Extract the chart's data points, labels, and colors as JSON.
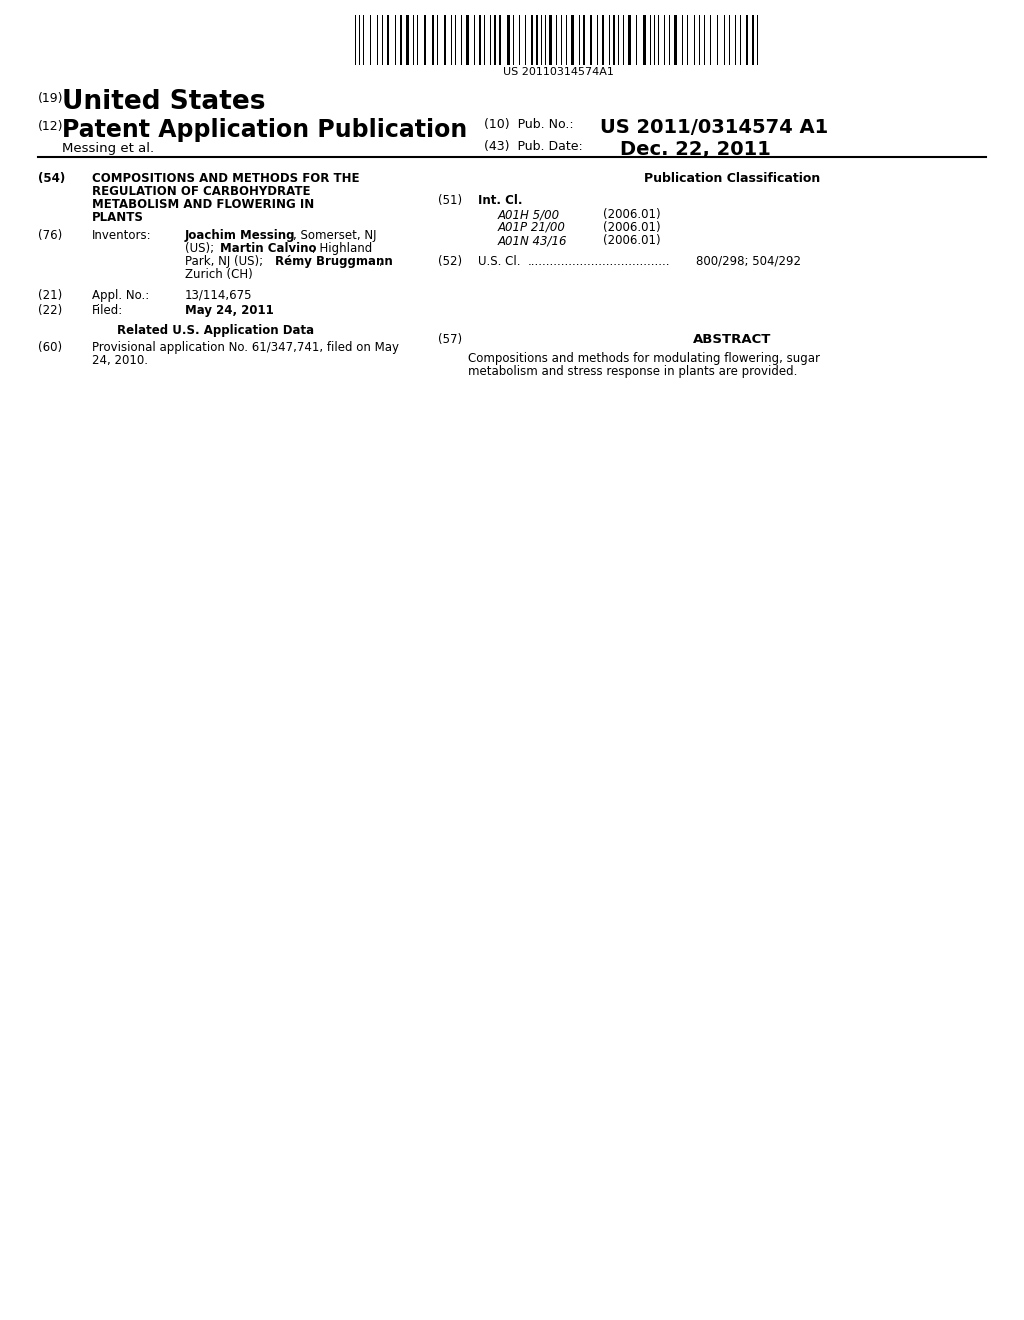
{
  "background_color": "#ffffff",
  "barcode_text": "US 20110314574A1",
  "country": "United States",
  "country_prefix": "(19)",
  "pub_type": "Patent Application Publication",
  "pub_type_prefix": "(12)",
  "inventors_line": "Messing et al.",
  "pub_no_prefix": "(10)  Pub. No.:",
  "pub_no": "US 2011/0314574 A1",
  "pub_date_prefix": "(43)  Pub. Date:",
  "pub_date": "Dec. 22, 2011",
  "field54_prefix": "(54)",
  "field54_lines": [
    "COMPOSITIONS AND METHODS FOR THE",
    "REGULATION OF CARBOHYDRATE",
    "METABOLISM AND FLOWERING IN",
    "PLANTS"
  ],
  "field76_prefix": "(76)",
  "field76_label": "Inventors:",
  "field21_prefix": "(21)",
  "field21_label": "Appl. No.:",
  "field21_value": "13/114,675",
  "field22_prefix": "(22)",
  "field22_label": "Filed:",
  "field22_value": "May 24, 2011",
  "related_header": "Related U.S. Application Data",
  "field60_prefix": "(60)",
  "field60_line1": "Provisional application No. 61/347,741, filed on May",
  "field60_line2": "24, 2010.",
  "pub_class_header": "Publication Classification",
  "field51_prefix": "(51)",
  "field51_label": "Int. Cl.",
  "int_cl_entries": [
    {
      "code": "A01H 5/00",
      "year": "(2006.01)"
    },
    {
      "code": "A01P 21/00",
      "year": "(2006.01)"
    },
    {
      "code": "A01N 43/16",
      "year": "(2006.01)"
    }
  ],
  "field52_prefix": "(52)",
  "field52_label": "U.S. Cl.",
  "field52_dots": "......................................",
  "field52_value": "800/298; 504/292",
  "field57_prefix": "(57)",
  "field57_header": "ABSTRACT",
  "field57_line1": "Compositions and methods for modulating flowering, sugar",
  "field57_line2": "metabolism and stress response in plants are provided."
}
